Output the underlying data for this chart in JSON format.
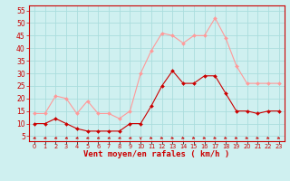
{
  "hours": [
    0,
    1,
    2,
    3,
    4,
    5,
    6,
    7,
    8,
    9,
    10,
    11,
    12,
    13,
    14,
    15,
    16,
    17,
    18,
    19,
    20,
    21,
    22,
    23
  ],
  "wind_mean": [
    10,
    10,
    12,
    10,
    8,
    7,
    7,
    7,
    7,
    10,
    10,
    17,
    25,
    31,
    26,
    26,
    29,
    29,
    22,
    15,
    15,
    14,
    15,
    15
  ],
  "wind_gusts": [
    14,
    14,
    21,
    20,
    14,
    19,
    14,
    14,
    12,
    15,
    30,
    39,
    46,
    45,
    42,
    45,
    45,
    52,
    44,
    33,
    26,
    26,
    26,
    26
  ],
  "bg_color": "#cff0f0",
  "grid_color": "#aadddd",
  "mean_color": "#cc0000",
  "gust_color": "#ff9999",
  "xlabel": "Vent moyen/en rafales ( km/h )",
  "yticks": [
    5,
    10,
    15,
    20,
    25,
    30,
    35,
    40,
    45,
    50,
    55
  ],
  "ylim": [
    3,
    57
  ],
  "xlim": [
    -0.5,
    23.5
  ]
}
